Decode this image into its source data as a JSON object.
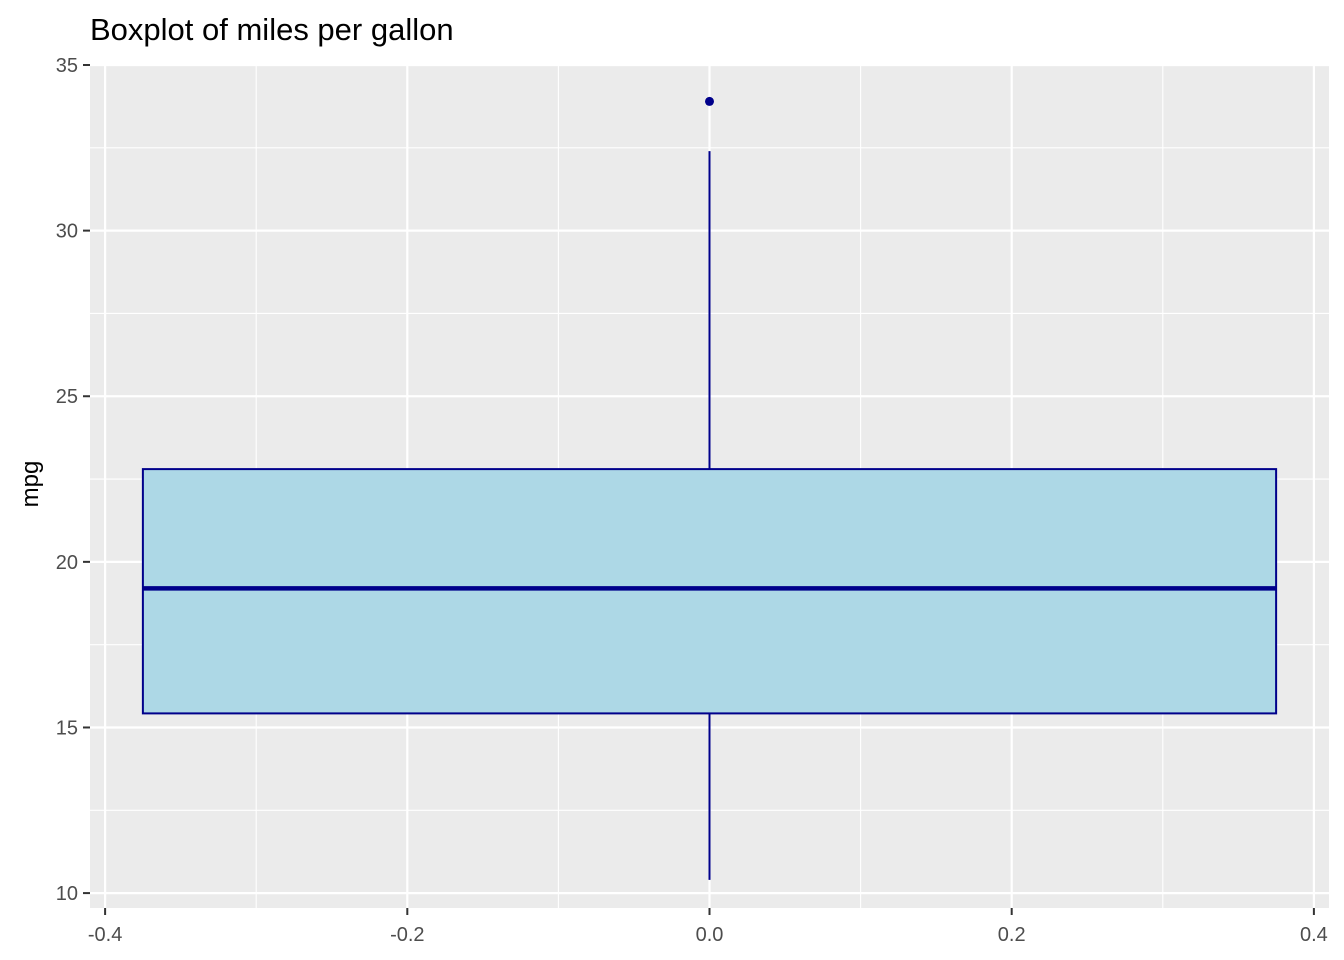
{
  "chart_data": {
    "type": "boxplot",
    "title": "Boxplot of miles per gallon",
    "xlabel": "",
    "ylabel": "mpg",
    "xlim": [
      -0.41,
      0.41
    ],
    "ylim": [
      9.55,
      35.0
    ],
    "x_ticks": [
      {
        "value": -0.4,
        "label": "-0.4"
      },
      {
        "value": -0.2,
        "label": "-0.2"
      },
      {
        "value": 0.0,
        "label": "0.0"
      },
      {
        "value": 0.2,
        "label": "0.2"
      },
      {
        "value": 0.4,
        "label": "0.4"
      }
    ],
    "x_minor_ticks": [
      -0.3,
      -0.1,
      0.1,
      0.3
    ],
    "y_ticks": [
      {
        "value": 10,
        "label": "10"
      },
      {
        "value": 15,
        "label": "15"
      },
      {
        "value": 20,
        "label": "20"
      },
      {
        "value": 25,
        "label": "25"
      },
      {
        "value": 30,
        "label": "30"
      },
      {
        "value": 35,
        "label": "35"
      }
    ],
    "y_minor_ticks": [
      12.5,
      17.5,
      22.5,
      27.5,
      32.5
    ],
    "grid": true,
    "box": {
      "x_center": 0.0,
      "x_min": -0.375,
      "x_max": 0.375,
      "whisker_low": 10.4,
      "q1": 15.425,
      "median": 19.2,
      "q3": 22.8,
      "whisker_high": 32.4,
      "outliers": [
        33.9
      ]
    },
    "colors": {
      "panel_background": "#ebebeb",
      "grid_line": "#ffffff",
      "box_fill": "#add8e6",
      "box_outline": "#00008b",
      "tick_label": "#4d4d4d",
      "tick_mark": "#333333",
      "title": "#000000"
    }
  }
}
